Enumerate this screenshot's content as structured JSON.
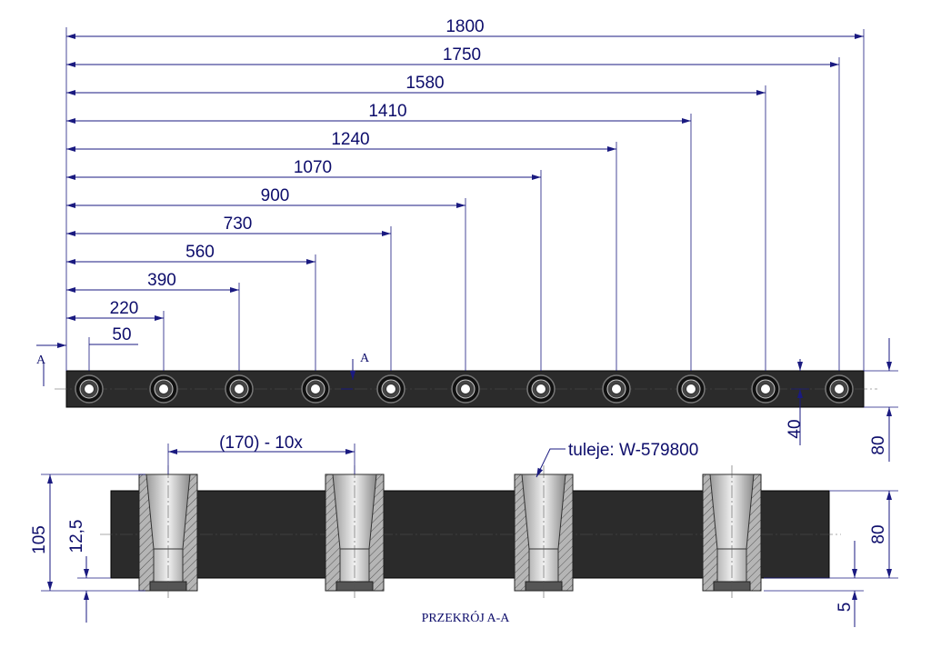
{
  "top_view": {
    "dimensions": [
      "1800",
      "1750",
      "1580",
      "1410",
      "1240",
      "1070",
      "900",
      "730",
      "560",
      "390",
      "220",
      "50"
    ],
    "section_marks": [
      "A",
      "A"
    ],
    "height_dims": [
      "40",
      "80"
    ]
  },
  "section": {
    "pitch": "(170) - 10x",
    "callout": "tuleje: W-579800",
    "left_dims": [
      "105",
      "12,5"
    ],
    "right_dims": [
      "80",
      "5"
    ],
    "caption": "PRZEKRÓJ A-A"
  }
}
